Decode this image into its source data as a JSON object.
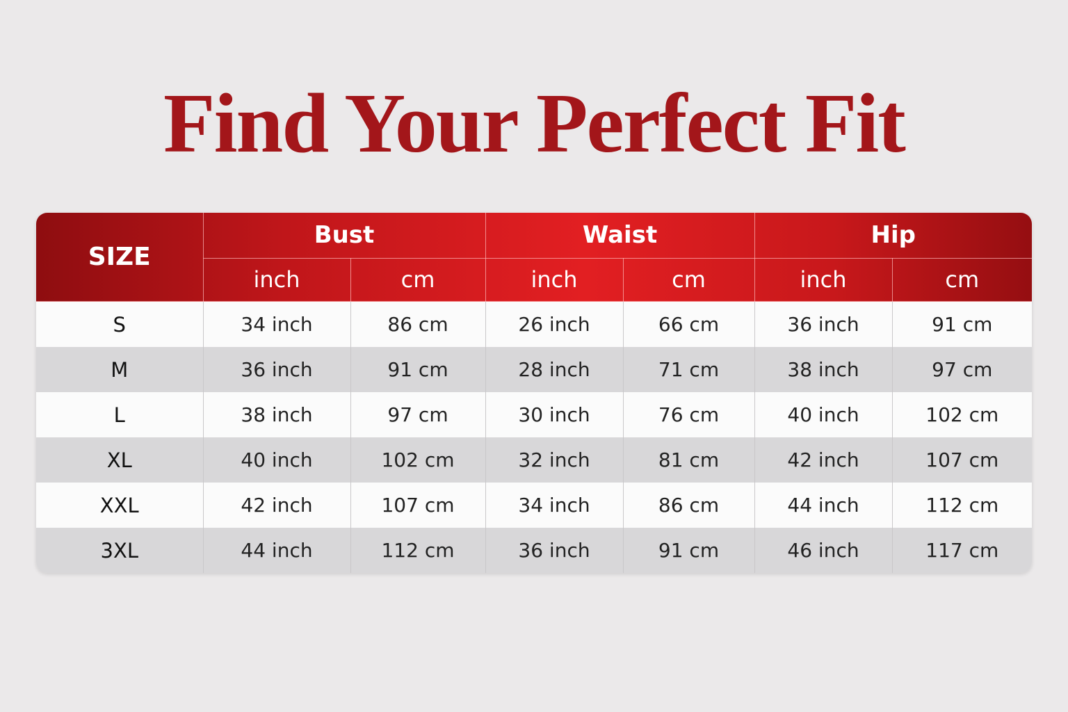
{
  "title": "Find Your Perfect Fit",
  "colors": {
    "accent": "#c0161a",
    "title": "#a3161a",
    "background": "#ebe9ea"
  },
  "table": {
    "size_header": "SIZE",
    "groups": [
      "Bust",
      "Waist",
      "Hip"
    ],
    "units": [
      "inch",
      "cm",
      "inch",
      "cm",
      "inch",
      "cm"
    ],
    "rows": [
      {
        "size": "S",
        "values": [
          "34 inch",
          "86 cm",
          "26 inch",
          "66 cm",
          "36 inch",
          "91 cm"
        ]
      },
      {
        "size": "M",
        "values": [
          "36 inch",
          "91 cm",
          "28 inch",
          "71 cm",
          "38 inch",
          "97 cm"
        ]
      },
      {
        "size": "L",
        "values": [
          "38 inch",
          "97 cm",
          "30 inch",
          "76 cm",
          "40 inch",
          "102 cm"
        ]
      },
      {
        "size": "XL",
        "values": [
          "40 inch",
          "102 cm",
          "32 inch",
          "81 cm",
          "42 inch",
          "107 cm"
        ]
      },
      {
        "size": "XXL",
        "values": [
          "42 inch",
          "107 cm",
          "34 inch",
          "86 cm",
          "44 inch",
          "112 cm"
        ]
      },
      {
        "size": "3XL",
        "values": [
          "44 inch",
          "112 cm",
          "36 inch",
          "91 cm",
          "46 inch",
          "117 cm"
        ]
      }
    ]
  }
}
